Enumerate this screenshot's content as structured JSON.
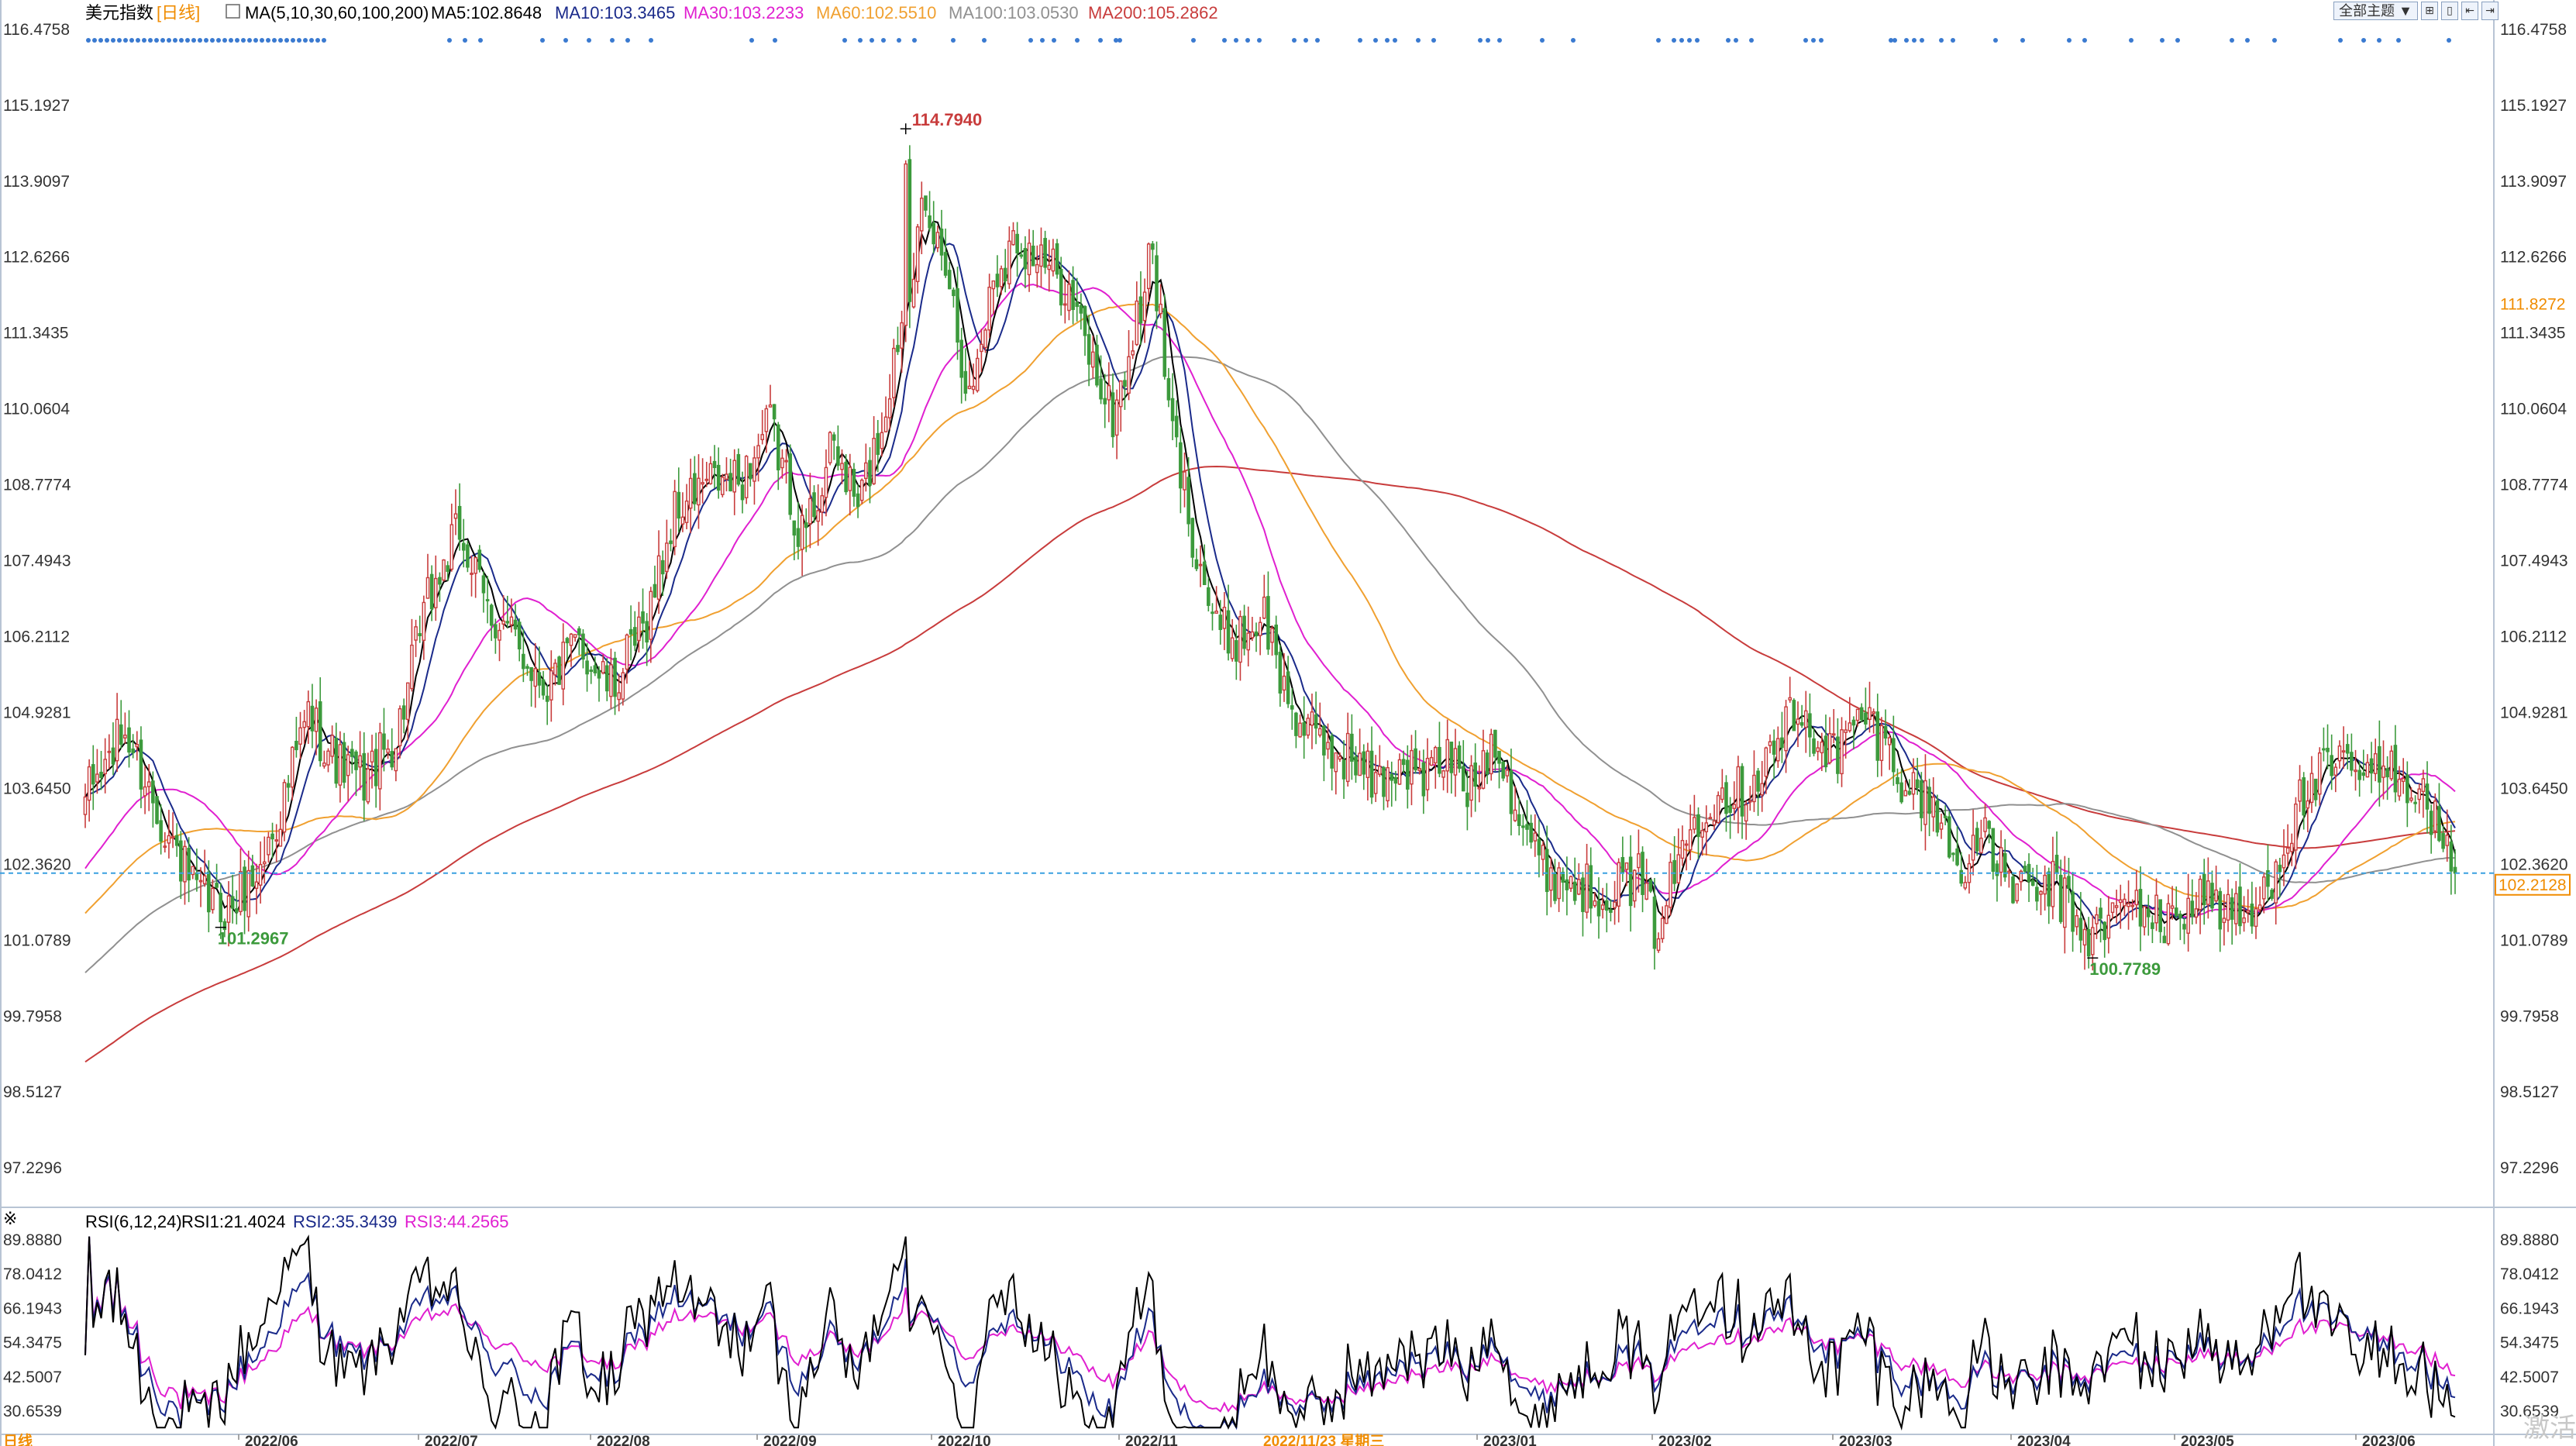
{
  "window": {
    "toolbar": {
      "dropdown_label": "全部主题",
      "dropdown_arrow": "▼",
      "btn1_glyph": "⊞",
      "btn2_glyph": "▯",
      "btn3_glyph": "⇤",
      "btn4_glyph": "⇥"
    },
    "watermark": "激活"
  },
  "main_header": {
    "title": "美元指数",
    "period": "[日线]",
    "ma_params": "MA(5,10,30,60,100,200)",
    "ma5": "MA5:102.8648",
    "ma10": "MA10:103.3465",
    "ma30": "MA30:103.2233",
    "ma60": "MA60:102.5510",
    "ma100": "MA100:103.0530",
    "ma200": "MA200:105.2862"
  },
  "rsi_header": {
    "params": "RSI(6,12,24)",
    "rsi1": "RSI1:21.4024",
    "rsi2": "RSI2:35.3439",
    "rsi3": "RSI3:44.2565"
  },
  "colors": {
    "up": "#c83c3c",
    "down": "#3c9a3c",
    "ma5": "#000000",
    "ma10": "#1a2a8a",
    "ma30": "#e020d0",
    "ma60": "#f0a030",
    "ma100": "#909090",
    "ma200": "#c83c3c",
    "rsi1": "#000000",
    "rsi2": "#1a2a8a",
    "rsi3": "#e020d0"
  },
  "annotations": {
    "high": "114.7940",
    "low1": "101.2967",
    "low2": "100.7789",
    "ma60_tag": "111.8272",
    "last_price": "102.2128"
  },
  "price_ticks": [
    "116.4758",
    "115.1927",
    "113.9097",
    "112.6266",
    "111.3435",
    "110.0604",
    "108.7774",
    "107.4943",
    "106.2112",
    "104.9281",
    "103.6450",
    "102.3620",
    "101.0789",
    "99.7958",
    "98.5127",
    "97.2296"
  ],
  "rsi_ticks": [
    "89.8880",
    "78.0412",
    "66.1943",
    "54.3475",
    "42.5007",
    "30.6539"
  ],
  "date_ticks": [
    "2022/06",
    "2022/07",
    "2022/08",
    "2022/09",
    "2022/10",
    "2022/11",
    "2022/11/23 星期三",
    "2023/01",
    "2023/02",
    "2023/03",
    "2023/04",
    "2023/05",
    "2023/06"
  ],
  "bottom_left_label": "日线",
  "chart_data": {
    "type": "candlestick",
    "title": "美元指数",
    "period": "日线",
    "ylim": [
      96.8,
      116.5
    ],
    "rsi_ylim": [
      24,
      92
    ],
    "series_names": [
      "MA5",
      "MA10",
      "MA30",
      "MA60",
      "MA100",
      "MA200",
      "RSI1",
      "RSI2",
      "RSI3"
    ],
    "candles_anchor_close": [
      [
        0,
        103.5
      ],
      [
        10,
        104.6
      ],
      [
        20,
        103.0
      ],
      [
        28,
        101.8
      ],
      [
        36,
        101.6
      ],
      [
        44,
        102.3
      ],
      [
        50,
        103.5
      ],
      [
        56,
        104.9
      ],
      [
        64,
        104.0
      ],
      [
        70,
        103.8
      ],
      [
        78,
        104.5
      ],
      [
        86,
        106.8
      ],
      [
        94,
        108.0
      ],
      [
        100,
        106.8
      ],
      [
        108,
        106.1
      ],
      [
        116,
        105.4
      ],
      [
        124,
        106.1
      ],
      [
        132,
        105.3
      ],
      [
        140,
        106.3
      ],
      [
        148,
        108.3
      ],
      [
        156,
        108.8
      ],
      [
        164,
        108.8
      ],
      [
        172,
        109.8
      ],
      [
        180,
        107.9
      ],
      [
        188,
        109.4
      ],
      [
        194,
        108.4
      ],
      [
        200,
        109.8
      ],
      [
        206,
        112.0
      ],
      [
        210,
        113.2
      ],
      [
        216,
        112.7
      ],
      [
        222,
        110.2
      ],
      [
        228,
        112.3
      ],
      [
        234,
        113.0
      ],
      [
        240,
        112.5
      ],
      [
        246,
        112.2
      ],
      [
        252,
        111.0
      ],
      [
        258,
        109.9
      ],
      [
        264,
        111.5
      ],
      [
        268,
        112.8
      ],
      [
        272,
        110.0
      ],
      [
        278,
        108.0
      ],
      [
        284,
        106.3
      ],
      [
        290,
        106.2
      ],
      [
        296,
        106.6
      ],
      [
        300,
        105.5
      ],
      [
        306,
        104.6
      ],
      [
        312,
        104.3
      ],
      [
        318,
        104.2
      ],
      [
        324,
        103.7
      ],
      [
        330,
        104.1
      ],
      [
        336,
        103.8
      ],
      [
        342,
        104.2
      ],
      [
        348,
        103.6
      ],
      [
        354,
        104.6
      ],
      [
        360,
        103.2
      ],
      [
        366,
        102.3
      ],
      [
        372,
        102.1
      ],
      [
        378,
        101.9
      ],
      [
        384,
        102.0
      ],
      [
        390,
        102.1
      ],
      [
        394,
        101.3
      ],
      [
        398,
        102.0
      ],
      [
        404,
        103.2
      ],
      [
        410,
        103.6
      ],
      [
        416,
        103.6
      ],
      [
        422,
        104.1
      ],
      [
        428,
        104.8
      ],
      [
        434,
        104.6
      ],
      [
        440,
        104.2
      ],
      [
        446,
        104.9
      ],
      [
        452,
        104.4
      ],
      [
        458,
        103.6
      ],
      [
        464,
        103.4
      ],
      [
        470,
        102.3
      ],
      [
        476,
        102.8
      ],
      [
        482,
        102.2
      ],
      [
        488,
        101.8
      ],
      [
        494,
        102.0
      ],
      [
        500,
        101.4
      ],
      [
        504,
        101.1
      ],
      [
        510,
        101.6
      ],
      [
        516,
        101.7
      ],
      [
        522,
        101.3
      ],
      [
        528,
        101.7
      ],
      [
        532,
        101.9
      ],
      [
        538,
        101.5
      ],
      [
        544,
        101.4
      ],
      [
        550,
        102.4
      ],
      [
        556,
        103.4
      ],
      [
        562,
        103.9
      ],
      [
        568,
        104.0
      ],
      [
        574,
        103.8
      ],
      [
        580,
        104.0
      ],
      [
        586,
        103.6
      ],
      [
        590,
        103.1
      ],
      [
        594,
        102.2
      ]
    ],
    "ma_params": [
      5,
      10,
      30,
      60,
      100,
      200
    ],
    "ma_values_last": {
      "ma5": 102.8648,
      "ma10": 103.3465,
      "ma30": 103.2233,
      "ma60": 102.551,
      "ma100": 103.053,
      "ma200": 105.2862
    },
    "rsi_last": {
      "rsi1": 21.4024,
      "rsi2": 35.3439,
      "rsi3": 44.2565
    },
    "high": {
      "index": 206,
      "value": 114.794
    },
    "lows": [
      {
        "index": 34,
        "value": 101.2967
      },
      {
        "index": 504,
        "value": 100.7789
      }
    ],
    "last_close": 102.2128
  }
}
